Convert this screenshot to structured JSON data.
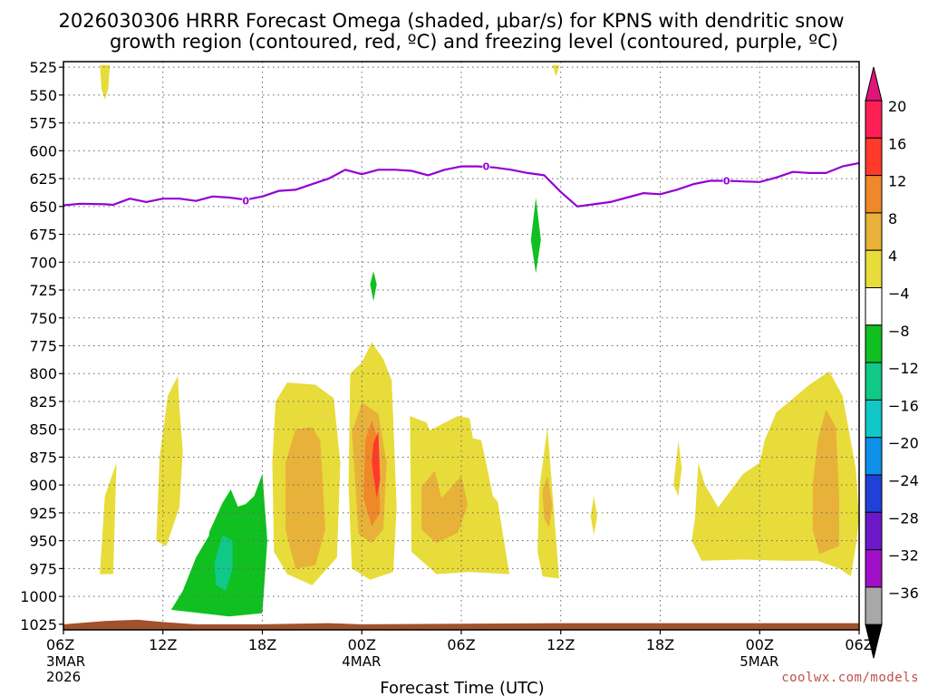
{
  "chart_data": {
    "type": "time-height contour",
    "title_line1": "2026030306 HRRR Forecast Omega (shaded, μbar/s) for KPNS with dendritic snow",
    "title_line2": "growth region (contoured, red, ºC) and freezing level (contoured, purple, ºC)",
    "xlabel": "Forecast Time (UTC)",
    "credit": "coolwx.com/models",
    "y_axis": {
      "unit": "hPa",
      "range": [
        1030,
        520
      ],
      "levels": [
        525,
        550,
        575,
        600,
        625,
        650,
        675,
        700,
        725,
        750,
        775,
        800,
        825,
        850,
        875,
        900,
        925,
        950,
        975,
        1000,
        1025
      ]
    },
    "x_axis": {
      "unit": "hours since 2026-03-03 06Z",
      "range": [
        0,
        48
      ],
      "ticks": [
        {
          "h": 0,
          "label": "06Z",
          "sub1": "3MAR",
          "sub2": "2026"
        },
        {
          "h": 6,
          "label": "12Z"
        },
        {
          "h": 12,
          "label": "18Z"
        },
        {
          "h": 18,
          "label": "00Z",
          "sub1": "4MAR"
        },
        {
          "h": 24,
          "label": "06Z"
        },
        {
          "h": 30,
          "label": "12Z"
        },
        {
          "h": 36,
          "label": "18Z"
        },
        {
          "h": 42,
          "label": "00Z",
          "sub1": "5MAR"
        },
        {
          "h": 48,
          "label": "06Z"
        }
      ]
    },
    "colorbar": {
      "labels": [
        "20",
        "16",
        "12",
        "8",
        "4",
        "−4",
        "−8",
        "−12",
        "−16",
        "−20",
        "−24",
        "−28",
        "−32",
        "−36"
      ],
      "colors": [
        "#ff1f55",
        "#ff3a2a",
        "#f0882a",
        "#e8b23a",
        "#e8dc3a",
        "#ffffff",
        "#10c020",
        "#10c888",
        "#10c8c8",
        "#1090e8",
        "#2040d8",
        "#6a18c8",
        "#a010c8",
        "#a8a8a8"
      ],
      "top_arrow": "#e0157a",
      "bottom_arrow": "#000000"
    },
    "freezing_level": {
      "color": "#9400d3",
      "contour_label": "0",
      "label_points": [
        [
          11,
          645
        ],
        [
          25.5,
          614
        ],
        [
          40,
          627
        ]
      ],
      "points": [
        [
          0,
          649
        ],
        [
          1,
          647.5
        ],
        [
          2.5,
          648
        ],
        [
          3,
          648.5
        ],
        [
          4,
          643
        ],
        [
          5,
          646
        ],
        [
          6,
          643
        ],
        [
          7,
          643
        ],
        [
          8,
          645
        ],
        [
          9,
          641
        ],
        [
          10,
          642
        ],
        [
          11,
          644
        ],
        [
          12,
          641
        ],
        [
          13,
          636
        ],
        [
          14,
          635
        ],
        [
          15,
          630
        ],
        [
          16,
          625
        ],
        [
          17,
          617
        ],
        [
          18,
          621
        ],
        [
          19,
          617
        ],
        [
          20,
          617
        ],
        [
          21,
          618
        ],
        [
          22,
          622
        ],
        [
          23,
          617
        ],
        [
          24,
          614
        ],
        [
          25,
          614
        ],
        [
          26,
          615
        ],
        [
          27,
          617
        ],
        [
          28,
          620
        ],
        [
          29,
          622
        ],
        [
          30,
          637
        ],
        [
          31,
          650
        ],
        [
          32,
          648
        ],
        [
          33,
          646
        ],
        [
          34,
          642
        ],
        [
          35,
          638
        ],
        [
          36,
          639
        ],
        [
          37,
          635
        ],
        [
          38,
          630
        ],
        [
          39,
          627
        ],
        [
          40,
          627
        ],
        [
          41,
          627.5
        ],
        [
          42,
          628
        ],
        [
          43,
          624
        ],
        [
          44,
          619
        ],
        [
          45,
          620
        ],
        [
          46,
          620
        ],
        [
          47,
          614
        ],
        [
          48,
          611
        ]
      ]
    },
    "omega_features": [
      {
        "fill": "#e8dc3a",
        "points": [
          [
            2.2,
            523
          ],
          [
            2.8,
            523
          ],
          [
            2.7,
            545
          ],
          [
            2.5,
            554
          ],
          [
            2.3,
            545
          ]
        ]
      },
      {
        "fill": "#e8dc3a",
        "points": [
          [
            29.5,
            523
          ],
          [
            29.9,
            523
          ],
          [
            29.8,
            530
          ],
          [
            29.7,
            533
          ]
        ]
      },
      {
        "fill": "#10c020",
        "points": [
          [
            28.5,
            642
          ],
          [
            28.8,
            680
          ],
          [
            28.5,
            710
          ],
          [
            28.2,
            680
          ]
        ]
      },
      {
        "fill": "#10c020",
        "points": [
          [
            18.7,
            708
          ],
          [
            18.9,
            720
          ],
          [
            18.7,
            735
          ],
          [
            18.5,
            720
          ]
        ]
      },
      {
        "fill": "#e8dc3a",
        "points": [
          [
            2.2,
            980
          ],
          [
            2.5,
            910
          ],
          [
            3.2,
            880
          ],
          [
            3.0,
            980
          ]
        ]
      },
      {
        "fill": "#e8dc3a",
        "points": [
          [
            5.6,
            950
          ],
          [
            5.8,
            875
          ],
          [
            6.3,
            820
          ],
          [
            6.9,
            802
          ],
          [
            7.0,
            830
          ],
          [
            7.2,
            870
          ],
          [
            7.0,
            920
          ],
          [
            6.2,
            955
          ]
        ]
      },
      {
        "fill": "#10c020",
        "points": [
          [
            6.5,
            1012
          ],
          [
            7.2,
            995
          ],
          [
            8.0,
            965
          ],
          [
            9.0,
            940
          ],
          [
            10.0,
            922
          ],
          [
            11.0,
            917
          ],
          [
            11.5,
            910
          ],
          [
            12.0,
            890
          ],
          [
            12.3,
            950
          ],
          [
            12.0,
            1015
          ],
          [
            10.0,
            1018
          ]
        ]
      },
      {
        "fill": "#10c020",
        "points": [
          [
            8.8,
            942
          ],
          [
            9.6,
            916
          ],
          [
            10.1,
            904
          ],
          [
            10.6,
            922
          ],
          [
            11.0,
            945
          ],
          [
            11.2,
            1013
          ],
          [
            9.5,
            1012
          ],
          [
            8.5,
            1000
          ]
        ]
      },
      {
        "fill": "#10c888",
        "points": [
          [
            9.1,
            970
          ],
          [
            9.6,
            945
          ],
          [
            10.2,
            950
          ],
          [
            10.2,
            975
          ],
          [
            9.8,
            995
          ],
          [
            9.2,
            990
          ]
        ]
      },
      {
        "fill": "#e8dc3a",
        "points": [
          [
            12.6,
            880
          ],
          [
            12.8,
            825
          ],
          [
            13.5,
            808
          ],
          [
            15.2,
            810
          ],
          [
            16.3,
            822
          ],
          [
            16.7,
            880
          ],
          [
            16.5,
            965
          ],
          [
            15.0,
            990
          ],
          [
            13.5,
            980
          ],
          [
            12.7,
            960
          ]
        ]
      },
      {
        "fill": "#e8b23a",
        "points": [
          [
            13.4,
            880
          ],
          [
            14.0,
            850
          ],
          [
            15.0,
            848
          ],
          [
            15.5,
            860
          ],
          [
            15.8,
            940
          ],
          [
            15.2,
            972
          ],
          [
            14.0,
            975
          ],
          [
            13.4,
            940
          ]
        ]
      },
      {
        "fill": "#e8dc3a",
        "points": [
          [
            17.3,
            800
          ],
          [
            18.0,
            790
          ],
          [
            18.6,
            772
          ],
          [
            19.3,
            787
          ],
          [
            19.8,
            806
          ],
          [
            20.1,
            920
          ],
          [
            19.9,
            978
          ],
          [
            18.5,
            985
          ],
          [
            17.4,
            975
          ],
          [
            17.2,
            900
          ]
        ]
      },
      {
        "fill": "#e8b23a",
        "points": [
          [
            17.4,
            852
          ],
          [
            18.0,
            826
          ],
          [
            19.0,
            836
          ],
          [
            19.5,
            880
          ],
          [
            19.3,
            940
          ],
          [
            18.6,
            952
          ],
          [
            17.8,
            944
          ]
        ]
      },
      {
        "fill": "#f0882a",
        "points": [
          [
            18.2,
            860
          ],
          [
            18.6,
            842
          ],
          [
            19.0,
            860
          ],
          [
            19.1,
            925
          ],
          [
            18.6,
            937
          ],
          [
            18.1,
            912
          ]
        ]
      },
      {
        "fill": "#ff3a2a",
        "points": [
          [
            18.7,
            862
          ],
          [
            19.0,
            852
          ],
          [
            19.1,
            895
          ],
          [
            18.9,
            912
          ],
          [
            18.6,
            880
          ]
        ]
      },
      {
        "fill": "#e8dc3a",
        "points": [
          [
            20.9,
            838
          ],
          [
            21.9,
            844
          ],
          [
            22.1,
            851
          ],
          [
            23.8,
            838
          ],
          [
            24.5,
            840
          ],
          [
            24.7,
            858
          ],
          [
            25.2,
            860
          ],
          [
            25.5,
            880
          ],
          [
            25.9,
            910
          ],
          [
            26.2,
            915
          ],
          [
            26.9,
            980
          ],
          [
            24.5,
            978
          ],
          [
            22.5,
            980
          ],
          [
            21.0,
            960
          ]
        ]
      },
      {
        "fill": "#e8b23a",
        "points": [
          [
            21.6,
            902
          ],
          [
            22.4,
            887
          ],
          [
            22.8,
            912
          ],
          [
            24.0,
            892
          ],
          [
            24.4,
            918
          ],
          [
            23.8,
            943
          ],
          [
            22.5,
            952
          ],
          [
            21.6,
            940
          ]
        ]
      },
      {
        "fill": "#e8dc3a",
        "points": [
          [
            28.7,
            904
          ],
          [
            29.2,
            848
          ],
          [
            29.8,
            965
          ],
          [
            29.9,
            984
          ],
          [
            28.9,
            982
          ],
          [
            28.6,
            960
          ]
        ]
      },
      {
        "fill": "#e8b23a",
        "points": [
          [
            28.9,
            905
          ],
          [
            29.2,
            892
          ],
          [
            29.5,
            918
          ],
          [
            29.3,
            938
          ],
          [
            29.0,
            930
          ]
        ]
      },
      {
        "fill": "#e8dc3a",
        "points": [
          [
            31.8,
            928
          ],
          [
            32.0,
            910
          ],
          [
            32.2,
            928
          ],
          [
            32.0,
            945
          ]
        ]
      },
      {
        "fill": "#e8dc3a",
        "points": [
          [
            36.8,
            900
          ],
          [
            37.1,
            860
          ],
          [
            37.3,
            885
          ],
          [
            37.1,
            910
          ]
        ]
      },
      {
        "fill": "#e8dc3a",
        "points": [
          [
            38.1,
            930
          ],
          [
            38.3,
            880
          ],
          [
            38.7,
            900
          ],
          [
            39.5,
            920
          ],
          [
            41.0,
            890
          ],
          [
            42.0,
            880
          ],
          [
            42.3,
            860
          ],
          [
            43.0,
            835
          ],
          [
            45.0,
            810
          ],
          [
            46.2,
            798
          ],
          [
            47.0,
            820
          ],
          [
            47.8,
            885
          ],
          [
            48.0,
            930
          ],
          [
            47.8,
            955
          ],
          [
            47.5,
            982
          ],
          [
            46.8,
            975
          ],
          [
            45.5,
            968
          ],
          [
            43.5,
            968
          ],
          [
            41.0,
            967
          ],
          [
            38.5,
            968
          ],
          [
            37.9,
            950
          ]
        ]
      },
      {
        "fill": "#e8b23a",
        "points": [
          [
            45.2,
            900
          ],
          [
            45.5,
            860
          ],
          [
            46.0,
            832
          ],
          [
            46.6,
            848
          ],
          [
            46.8,
            910
          ],
          [
            46.8,
            955
          ],
          [
            45.6,
            962
          ],
          [
            45.2,
            940
          ]
        ]
      }
    ],
    "terrain": {
      "fill": "#a0522d",
      "points": [
        [
          0,
          1025
        ],
        [
          2.5,
          1022
        ],
        [
          4.5,
          1021
        ],
        [
          6.0,
          1023
        ],
        [
          8.0,
          1025
        ],
        [
          12.0,
          1025
        ],
        [
          16.0,
          1024
        ],
        [
          18.0,
          1025
        ],
        [
          30.0,
          1024
        ],
        [
          48.0,
          1024
        ]
      ]
    }
  }
}
